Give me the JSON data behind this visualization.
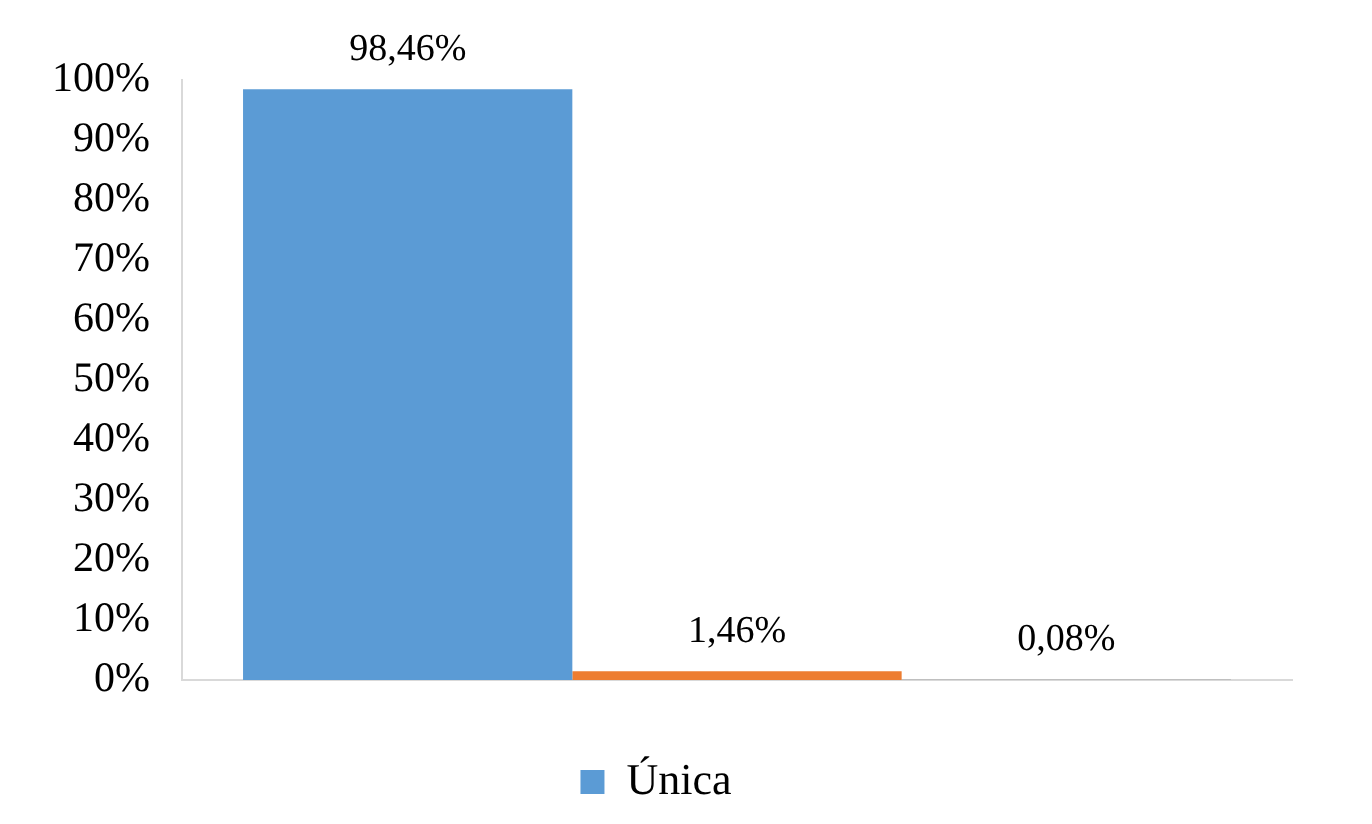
{
  "chart_data": {
    "type": "bar",
    "categories": [
      null
    ],
    "series": [
      {
        "name": "Única",
        "color": "#5b9bd5",
        "values": [
          98.46
        ],
        "value_labels": [
          "98,46%"
        ]
      },
      {
        "color": "#ed7d31",
        "values": [
          1.46
        ],
        "value_labels": [
          "1,46%"
        ]
      },
      {
        "color": "#a5a5a5",
        "values": [
          0.08
        ],
        "value_labels": [
          "0,08%"
        ]
      }
    ],
    "ylim": [
      0,
      100
    ],
    "yticks": [
      {
        "value": 0,
        "label": "0%"
      },
      {
        "value": 10,
        "label": "10%"
      },
      {
        "value": 20,
        "label": "20%"
      },
      {
        "value": 30,
        "label": "30%"
      },
      {
        "value": 40,
        "label": "40%"
      },
      {
        "value": 50,
        "label": "50%"
      },
      {
        "value": 60,
        "label": "60%"
      },
      {
        "value": 70,
        "label": "70%"
      },
      {
        "value": 80,
        "label": "80%"
      },
      {
        "value": 90,
        "label": "90%"
      },
      {
        "value": 100,
        "label": "100%"
      }
    ],
    "grid": false,
    "legend": "bottom"
  }
}
